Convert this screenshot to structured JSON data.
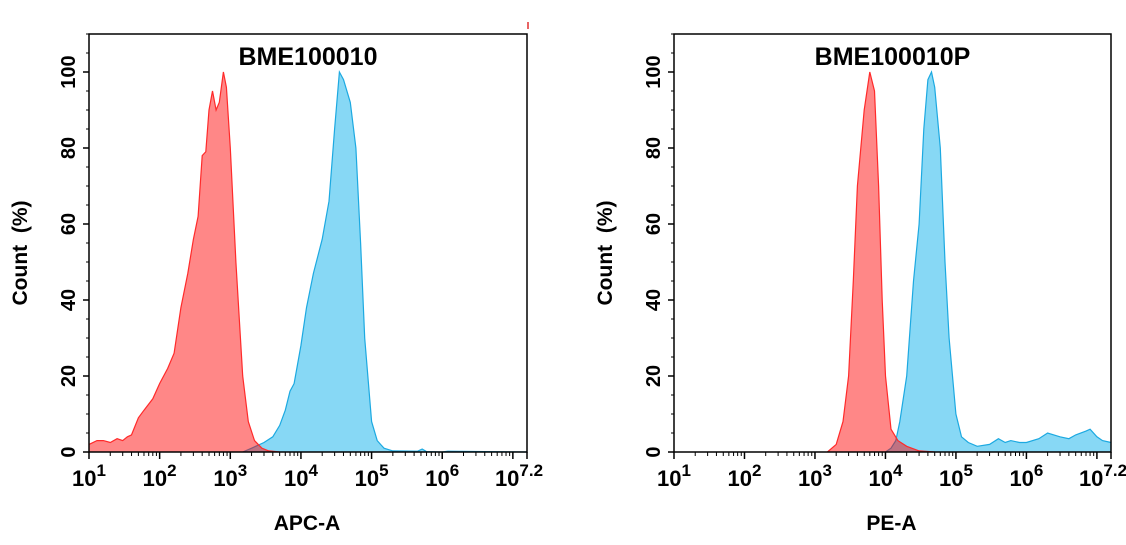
{
  "chart_data": [
    {
      "type": "area",
      "title": "BME100010",
      "xlabel": "APC-A",
      "ylabel": "Count  (%)",
      "xscale": "log",
      "xlim": [
        10,
        15848932
      ],
      "ylim": [
        0,
        110
      ],
      "x_ticks": [
        {
          "base": "10",
          "exp": "1"
        },
        {
          "base": "10",
          "exp": "2"
        },
        {
          "base": "10",
          "exp": "3"
        },
        {
          "base": "10",
          "exp": "4"
        },
        {
          "base": "10",
          "exp": "5"
        },
        {
          "base": "10",
          "exp": "6"
        },
        {
          "base": "10",
          "exp": "7.2"
        }
      ],
      "y_ticks": [
        "0",
        "20",
        "40",
        "60",
        "80",
        "100"
      ],
      "grid": false,
      "colors": {
        "control_fill": "#ff8080",
        "control_line": "#ff2a2a",
        "sample_fill": "#87d8f5",
        "sample_line": "#1ca9e1"
      },
      "series": [
        {
          "x": [
            1500,
            2000,
            3000,
            4000,
            5000,
            6000,
            7000,
            8000,
            10000,
            12000,
            15000,
            20000,
            25000,
            30000,
            35000,
            40000,
            50000,
            60000,
            70000,
            80000,
            100000,
            120000,
            150000,
            200000,
            450000,
            520000,
            600000,
            1000000,
            1200000,
            15848932
          ],
          "y": [
            0,
            1,
            2.5,
            4,
            7,
            11,
            16,
            18,
            28,
            38,
            47,
            56,
            66,
            85,
            100,
            98,
            92,
            80,
            55,
            30,
            8,
            3,
            1,
            0.3,
            0.2,
            0.8,
            0.1,
            0,
            0.2,
            0
          ]
        },
        {
          "x": [
            10,
            13,
            16,
            20,
            25,
            30,
            35,
            40,
            50,
            60,
            80,
            100,
            130,
            160,
            200,
            250,
            300,
            350,
            400,
            450,
            500,
            560,
            630,
            700,
            800,
            880,
            1000,
            1200,
            1500,
            1800,
            2200,
            2800,
            3500,
            5000
          ],
          "y": [
            2,
            3,
            3,
            2.5,
            3.5,
            3,
            4,
            4.5,
            9,
            11,
            14,
            18,
            22,
            26,
            38,
            47,
            56,
            62,
            78,
            79,
            90,
            95,
            90,
            92,
            100,
            96,
            80,
            50,
            20,
            8,
            3,
            1,
            0.3,
            0
          ]
        }
      ]
    },
    {
      "type": "area",
      "title": "BME100010P",
      "xlabel": "PE-A",
      "ylabel": "Count  (%)",
      "xscale": "log",
      "xlim": [
        10,
        15848932
      ],
      "ylim": [
        0,
        110
      ],
      "x_ticks": [
        {
          "base": "10",
          "exp": "1"
        },
        {
          "base": "10",
          "exp": "2"
        },
        {
          "base": "10",
          "exp": "3"
        },
        {
          "base": "10",
          "exp": "4"
        },
        {
          "base": "10",
          "exp": "5"
        },
        {
          "base": "10",
          "exp": "6"
        },
        {
          "base": "10",
          "exp": "7.2"
        }
      ],
      "y_ticks": [
        "0",
        "20",
        "40",
        "60",
        "80",
        "100"
      ],
      "grid": false,
      "colors": {
        "control_fill": "#ff8080",
        "control_line": "#ff2a2a",
        "sample_fill": "#87d8f5",
        "sample_line": "#1ca9e1"
      },
      "series": [
        {
          "x": [
            10000,
            12000,
            14000,
            16000,
            20000,
            25000,
            30000,
            35000,
            40000,
            45000,
            50000,
            60000,
            70000,
            80000,
            100000,
            120000,
            150000,
            200000,
            300000,
            400000,
            500000,
            600000,
            800000,
            1000000,
            1500000,
            2000000,
            3000000,
            4000000,
            5000000,
            7000000,
            8000000,
            10000000,
            12000000,
            15848932
          ],
          "y": [
            0,
            1,
            3,
            8,
            20,
            45,
            60,
            85,
            98,
            100,
            96,
            80,
            50,
            30,
            10,
            4,
            2.5,
            1.5,
            2,
            3.5,
            2.5,
            3,
            2.5,
            2.5,
            3.5,
            5,
            4,
            3.5,
            4.5,
            5.5,
            6,
            4,
            3,
            2.5
          ]
        },
        {
          "x": [
            1500,
            2000,
            2500,
            3000,
            3500,
            4000,
            5000,
            6000,
            7000,
            8000,
            9000,
            10000,
            12000,
            15000,
            20000,
            30000,
            50000
          ],
          "y": [
            0,
            2,
            8,
            20,
            45,
            70,
            90,
            100,
            95,
            70,
            40,
            20,
            6,
            3,
            1.5,
            0.3,
            0
          ]
        }
      ]
    }
  ]
}
